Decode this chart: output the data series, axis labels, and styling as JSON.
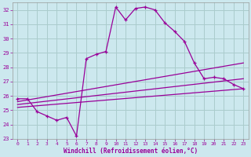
{
  "xlabel": "Windchill (Refroidissement éolien,°C)",
  "bg_color": "#cce8ee",
  "grid_color": "#aacccc",
  "line_color": "#990099",
  "xlim": [
    -0.5,
    23.5
  ],
  "ylim": [
    23,
    32.5
  ],
  "yticks": [
    23,
    24,
    25,
    26,
    27,
    28,
    29,
    30,
    31,
    32
  ],
  "xticks": [
    0,
    1,
    2,
    3,
    4,
    5,
    6,
    7,
    8,
    9,
    10,
    11,
    12,
    13,
    14,
    15,
    16,
    17,
    18,
    19,
    20,
    21,
    22,
    23
  ],
  "line1_x": [
    0,
    1,
    2,
    3,
    4,
    5,
    6,
    7,
    8,
    9,
    10,
    11,
    12,
    13,
    14,
    15,
    16,
    17,
    18,
    19,
    20,
    21,
    22,
    23
  ],
  "line1_y": [
    25.8,
    25.8,
    24.9,
    24.6,
    24.3,
    24.5,
    23.2,
    28.6,
    28.9,
    29.1,
    32.2,
    31.3,
    32.1,
    32.2,
    32.0,
    31.1,
    30.5,
    29.8,
    28.3,
    27.2,
    27.3,
    27.2,
    26.8,
    26.5
  ],
  "line2_x": [
    0,
    23
  ],
  "line2_y": [
    25.6,
    28.3
  ],
  "line3_x": [
    0,
    23
  ],
  "line3_y": [
    25.4,
    27.2
  ],
  "line4_x": [
    0,
    23
  ],
  "line4_y": [
    25.2,
    26.5
  ]
}
